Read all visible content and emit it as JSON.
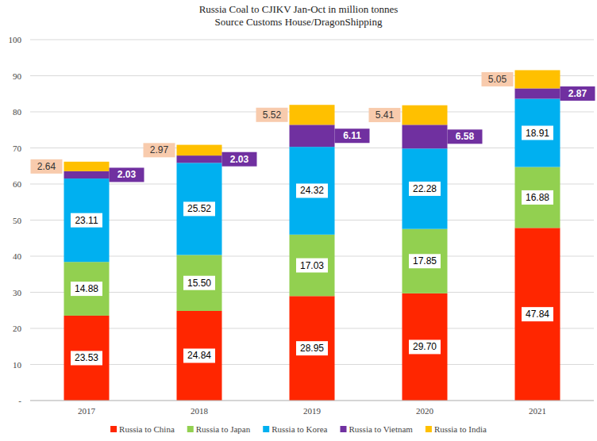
{
  "chart_data": {
    "type": "bar",
    "title": "Russia Coal to CJIKV Jan-Oct in million tonnes",
    "subtitle": "Source Customs House/DragonShipping",
    "categories": [
      "2017",
      "2018",
      "2019",
      "2020",
      "2021"
    ],
    "series": [
      {
        "name": "Russia to China",
        "color": "#ff2600",
        "values": [
          23.53,
          24.84,
          28.95,
          29.7,
          47.84
        ],
        "value_labels": [
          "23.53",
          "24.84",
          "28.95",
          "29.70",
          "47.84"
        ]
      },
      {
        "name": "Russia to Japan",
        "color": "#92d050",
        "values": [
          14.88,
          15.5,
          17.03,
          17.85,
          16.88
        ],
        "value_labels": [
          "14.88",
          "15.50",
          "17.03",
          "17.85",
          "16.88"
        ]
      },
      {
        "name": "Russia to Korea",
        "color": "#00b0f0",
        "values": [
          23.11,
          25.52,
          24.32,
          22.28,
          18.91
        ],
        "value_labels": [
          "23.11",
          "25.52",
          "24.32",
          "22.28",
          "18.91"
        ]
      },
      {
        "name": "Russia to Vietnam",
        "color": "#7030a0",
        "values": [
          2.03,
          2.03,
          6.11,
          6.58,
          2.87
        ],
        "value_labels": [
          "2.03",
          "2.03",
          "6.11",
          "6.58",
          "2.87"
        ]
      },
      {
        "name": "Russia to India",
        "color": "#ffc000",
        "values": [
          2.64,
          2.97,
          5.52,
          5.41,
          5.05
        ],
        "value_labels": [
          "2.64",
          "2.97",
          "5.52",
          "5.41",
          "5.05"
        ]
      }
    ],
    "ylim": [
      0,
      100
    ],
    "yticks": [
      {
        "value": 0,
        "label": "-"
      },
      10,
      20,
      30,
      40,
      50,
      60,
      70,
      80,
      90,
      100
    ],
    "grid": true,
    "stacked": true,
    "data_labels": true,
    "legend": "bottom"
  }
}
